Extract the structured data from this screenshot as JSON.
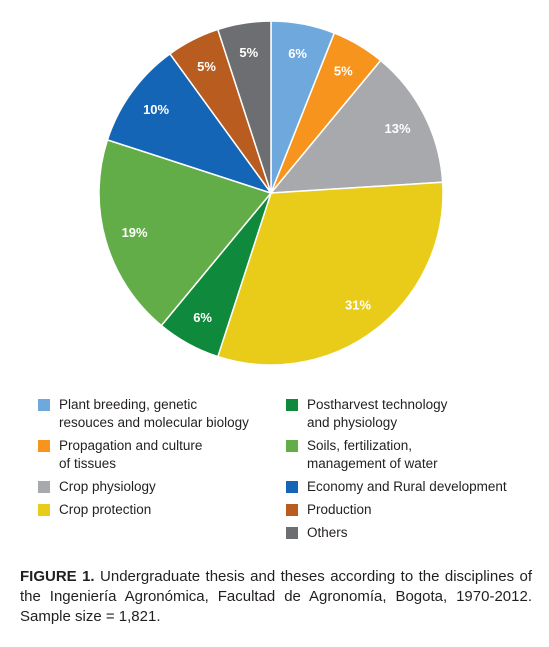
{
  "chart_data": {
    "type": "pie",
    "slices": [
      {
        "label": "Plant breeding, genetic\nresouces and molecular biology",
        "value": 6,
        "pct_label": "6%",
        "color": "#6fa8dc"
      },
      {
        "label": "Propagation and culture\nof tissues",
        "value": 5,
        "pct_label": "5%",
        "color": "#f7941d"
      },
      {
        "label": "Crop physiology",
        "value": 13,
        "pct_label": "13%",
        "color": "#a7a9ac"
      },
      {
        "label": "Crop protection",
        "value": 31,
        "pct_label": "31%",
        "color": "#e8cc19"
      },
      {
        "label": "Postharvest technology\nand physiology",
        "value": 6,
        "pct_label": "6%",
        "color": "#0f8a3c"
      },
      {
        "label": "Soils, fertilization,\nmanagement of water",
        "value": 19,
        "pct_label": "19%",
        "color": "#62ad47"
      },
      {
        "label": "Economy and Rural development",
        "value": 10,
        "pct_label": "10%",
        "color": "#1565b7"
      },
      {
        "label": "Production",
        "value": 5,
        "pct_label": "5%",
        "color": "#b85c20"
      },
      {
        "label": "Others",
        "value": 5,
        "pct_label": "5%",
        "color": "#6d6e71"
      }
    ]
  },
  "legend": {
    "left": [
      {
        "text": "Plant breeding, genetic\nresouces and molecular biology",
        "color": "#6fa8dc"
      },
      {
        "text": "Propagation and culture\nof tissues",
        "color": "#f7941d"
      },
      {
        "text": "Crop physiology",
        "color": "#a7a9ac"
      },
      {
        "text": "Crop protection",
        "color": "#e8cc19"
      }
    ],
    "right": [
      {
        "text": "Postharvest technology\nand physiology",
        "color": "#0f8a3c"
      },
      {
        "text": "Soils, fertilization,\nmanagement of water",
        "color": "#62ad47"
      },
      {
        "text": "Economy and Rural development",
        "color": "#1565b7"
      },
      {
        "text": "Production",
        "color": "#b85c20"
      },
      {
        "text": "Others",
        "color": "#6d6e71"
      }
    ]
  },
  "caption": {
    "label": "FIGURE 1.",
    "text": " Undergraduate thesis and theses according to the disciplines of the Ingeniería Agronómica, Facultad de Agronomía, Bogota, 1970-2012. Sample size = 1,821."
  }
}
